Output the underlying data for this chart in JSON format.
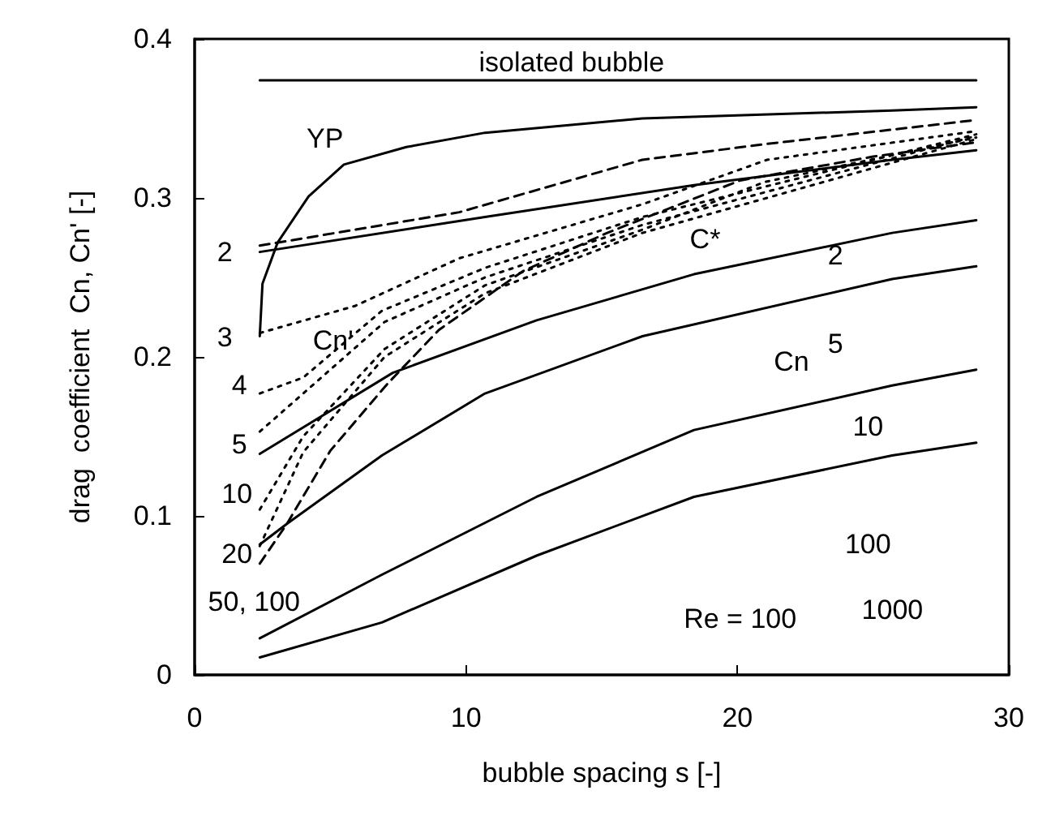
{
  "chart_data": {
    "type": "line",
    "xlabel": "bubble spacing s [-]",
    "ylabel": "drag  coefficient  Cn, Cn' [-]",
    "xlim": [
      0,
      30
    ],
    "xticks": [
      0,
      10,
      20,
      30
    ],
    "ylim": [
      0,
      0.4
    ],
    "yticks": [
      0,
      0.1,
      0.2,
      0.3,
      0.4
    ],
    "grid": false,
    "marker": "none",
    "series": [
      {
        "color": "#000000",
        "line_style": "solid",
        "x": [
          2.4,
          28.8
        ],
        "values": [
          0.374,
          0.374
        ]
      },
      {
        "color": "#000000",
        "line_style": "solid",
        "x": [
          2.4,
          2.5,
          3.06,
          4.2,
          5.5,
          7.8,
          10.7,
          16.5,
          25.7,
          28.8
        ],
        "values": [
          0.213,
          0.246,
          0.272,
          0.301,
          0.321,
          0.332,
          0.341,
          0.35,
          0.355,
          0.357
        ]
      },
      {
        "color": "#000000",
        "line_style": "solid",
        "x": [
          2.4,
          10.7,
          18.4,
          25.7,
          28.8
        ],
        "values": [
          0.266,
          0.288,
          0.308,
          0.324,
          0.33
        ]
      },
      {
        "color": "#000000",
        "line_style": "solid",
        "x": [
          2.4,
          7.3,
          12.6,
          18.4,
          25.7,
          28.8
        ],
        "values": [
          0.139,
          0.19,
          0.223,
          0.252,
          0.278,
          0.286
        ]
      },
      {
        "color": "#000000",
        "line_style": "solid",
        "x": [
          2.4,
          3.4,
          6.9,
          10.7,
          16.5,
          25.7,
          28.8
        ],
        "values": [
          0.082,
          0.095,
          0.138,
          0.177,
          0.213,
          0.249,
          0.257
        ]
      },
      {
        "color": "#000000",
        "line_style": "solid",
        "x": [
          2.4,
          6.9,
          12.6,
          18.4,
          25.7,
          28.8
        ],
        "values": [
          0.023,
          0.063,
          0.112,
          0.154,
          0.182,
          0.192
        ]
      },
      {
        "color": "#000000",
        "line_style": "solid",
        "x": [
          2.4,
          6.9,
          12.6,
          18.4,
          25.7,
          28.8
        ],
        "values": [
          0.011,
          0.033,
          0.075,
          0.112,
          0.138,
          0.146
        ]
      },
      {
        "color": "#000000",
        "line_style": "dashed",
        "x": [
          2.4,
          9.75,
          16.5,
          21.1,
          28.8
        ],
        "values": [
          0.27,
          0.291,
          0.324,
          0.334,
          0.349
        ]
      },
      {
        "color": "#000000",
        "line_style": "dotted",
        "x": [
          2.4,
          5.9,
          9.75,
          16.5,
          21.1,
          28.8
        ],
        "values": [
          0.215,
          0.232,
          0.262,
          0.296,
          0.324,
          0.342
        ]
      },
      {
        "color": "#000000",
        "line_style": "dotted",
        "x": [
          2.4,
          4.0,
          6.9,
          10.7,
          16.5,
          28.8
        ],
        "values": [
          0.177,
          0.187,
          0.229,
          0.256,
          0.288,
          0.34
        ]
      },
      {
        "color": "#000000",
        "line_style": "dotted",
        "x": [
          2.4,
          7,
          10.7,
          16.5,
          28.8
        ],
        "values": [
          0.153,
          0.222,
          0.25,
          0.283,
          0.339
        ]
      },
      {
        "color": "#000000",
        "line_style": "dotted",
        "x": [
          2.4,
          4,
          7,
          10.7,
          16.5,
          21,
          28.8
        ],
        "values": [
          0.104,
          0.15,
          0.205,
          0.245,
          0.28,
          0.31,
          0.338
        ]
      },
      {
        "color": "#000000",
        "line_style": "dotted",
        "x": [
          2.4,
          4,
          7,
          10.7,
          16.5,
          28.8
        ],
        "values": [
          0.081,
          0.14,
          0.2,
          0.24,
          0.278,
          0.337
        ]
      },
      {
        "color": "#000000",
        "line_style": "dashed",
        "x": [
          2.4,
          3.4,
          5,
          7.1,
          9,
          12.1,
          15.2,
          20.1,
          25,
          28.8
        ],
        "values": [
          0.07,
          0.095,
          0.141,
          0.183,
          0.217,
          0.254,
          0.278,
          0.311,
          0.326,
          0.335
        ]
      }
    ],
    "annotations": [
      "isolated bubble",
      "YP",
      "Cn'",
      "C*",
      "Cn",
      "Re = 100",
      "2",
      "5",
      "10",
      "100",
      "1000",
      "2",
      "3",
      "4",
      "5",
      "10",
      "20",
      "50, 100"
    ]
  }
}
